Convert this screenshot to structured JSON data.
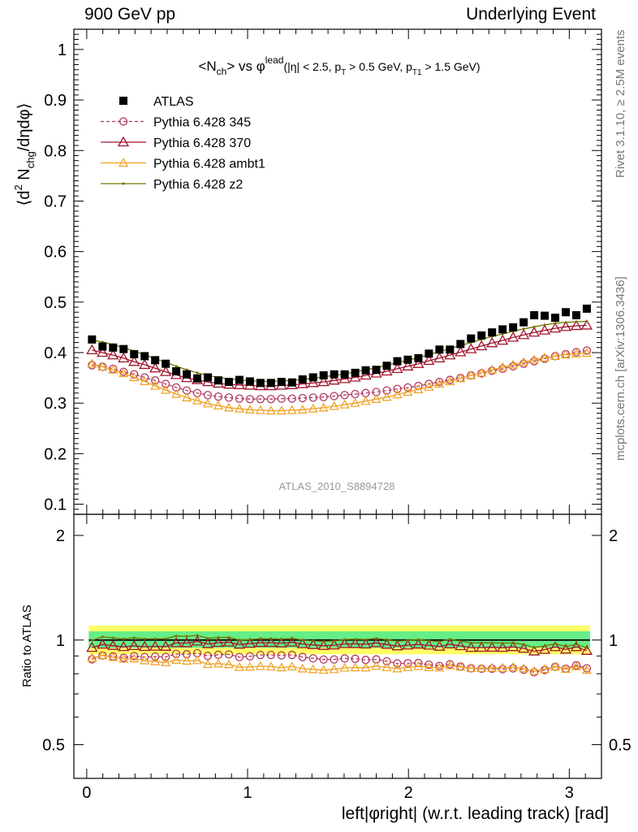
{
  "header": {
    "left_label": "900 GeV pp",
    "right_label": "Underlying Event"
  },
  "side": {
    "rivet_label": "Rivet 3.1.10, ≥ 2.5M events",
    "mcplots_label": "mcplots.cern.ch [arXiv:1306.3436]"
  },
  "colors": {
    "atlas": "#000000",
    "p345": "#b2375f",
    "p370": "#a0142d",
    "ambt1": "#f0a020",
    "z2": "#737300",
    "band_green": "#66ee88",
    "band_yellow": "#ffff66"
  },
  "chart_data": {
    "type": "scatter",
    "title": "<N_ch> vs φ^lead (|η| < 2.5, p_T > 0.5 GeV, p_T1 > 1.5 GeV)",
    "title_parts": {
      "main": "<N",
      "main_sub": "ch",
      "vs": "> vs φ",
      "sup": "lead",
      "cuts_a": "(|η| < 2.5, p",
      "cuts_a_sub": "T",
      "cuts_b": " > 0.5 GeV, p",
      "cuts_b_sub": "T1",
      "cuts_c": " > 1.5 GeV)"
    },
    "ylabel": "⟨d² N_chg/dηdφ⟩",
    "ylabel_parts": {
      "a": "⟨d",
      "a_sup": "2",
      "b": " N",
      "b_sub": "chg",
      "c": "/dηdφ⟩"
    },
    "ratio_ylabel": "Ratio to ATLAS",
    "xlabel": "left|φright| (w.r.t. leading track) [rad]",
    "analysis_label": "ATLAS_2010_S8894728",
    "xlim": [
      -0.08,
      3.2
    ],
    "ylim": [
      0.08,
      1.04
    ],
    "ratio_ylim": [
      0.4,
      2.3
    ],
    "ratio_scale": "log",
    "x_ticks": [
      "0",
      "1",
      "2",
      "3"
    ],
    "y_ticks": [
      "0.1",
      "0.2",
      "0.3",
      "0.4",
      "0.5",
      "0.6",
      "0.7",
      "0.8",
      "0.9",
      "1"
    ],
    "ratio_y_ticks": [
      "0.5",
      "1",
      "2"
    ],
    "legend_position": "top-left",
    "grid": false,
    "legend": [
      {
        "name": "ATLAS",
        "marker": "square"
      },
      {
        "name": "Pythia 6.428 345",
        "marker": "circle-open"
      },
      {
        "name": "Pythia 6.428 370",
        "marker": "triangle-open"
      },
      {
        "name": "Pythia 6.428 ambt1",
        "marker": "triangle-open-small"
      },
      {
        "name": "Pythia 6.428 z2",
        "marker": "dot"
      }
    ],
    "x": [
      0.0327,
      0.0982,
      0.1636,
      0.2291,
      0.2945,
      0.36,
      0.4254,
      0.4909,
      0.5563,
      0.6218,
      0.6872,
      0.7527,
      0.8181,
      0.8836,
      0.949,
      1.0145,
      1.0799,
      1.1454,
      1.2108,
      1.2763,
      1.3417,
      1.4072,
      1.4726,
      1.5381,
      1.6035,
      1.669,
      1.7344,
      1.7999,
      1.8653,
      1.9308,
      1.9962,
      2.0617,
      2.1271,
      2.1926,
      2.258,
      2.3235,
      2.3889,
      2.4544,
      2.5198,
      2.5853,
      2.6507,
      2.7162,
      2.7816,
      2.8471,
      2.9125,
      2.978,
      3.0434,
      3.1089
    ],
    "series": [
      {
        "name": "ATLAS",
        "values": [
          0.426,
          0.412,
          0.41,
          0.407,
          0.397,
          0.393,
          0.385,
          0.378,
          0.363,
          0.357,
          0.349,
          0.351,
          0.345,
          0.342,
          0.346,
          0.343,
          0.34,
          0.34,
          0.342,
          0.341,
          0.347,
          0.351,
          0.355,
          0.357,
          0.357,
          0.36,
          0.365,
          0.366,
          0.374,
          0.383,
          0.386,
          0.389,
          0.398,
          0.406,
          0.406,
          0.417,
          0.428,
          0.434,
          0.44,
          0.446,
          0.45,
          0.46,
          0.474,
          0.473,
          0.469,
          0.48,
          0.474,
          0.487
        ]
      },
      {
        "name": "Pythia 6.428 345",
        "values": [
          0.375,
          0.372,
          0.368,
          0.362,
          0.357,
          0.351,
          0.345,
          0.338,
          0.331,
          0.325,
          0.32,
          0.316,
          0.313,
          0.311,
          0.309,
          0.308,
          0.308,
          0.308,
          0.309,
          0.309,
          0.31,
          0.311,
          0.312,
          0.314,
          0.316,
          0.318,
          0.32,
          0.322,
          0.325,
          0.328,
          0.331,
          0.334,
          0.338,
          0.342,
          0.346,
          0.35,
          0.355,
          0.359,
          0.364,
          0.368,
          0.373,
          0.378,
          0.383,
          0.388,
          0.393,
          0.397,
          0.401,
          0.404
        ]
      },
      {
        "name": "Pythia 6.428 370",
        "values": [
          0.405,
          0.4,
          0.395,
          0.389,
          0.382,
          0.376,
          0.369,
          0.362,
          0.356,
          0.35,
          0.346,
          0.342,
          0.339,
          0.337,
          0.336,
          0.335,
          0.334,
          0.334,
          0.335,
          0.336,
          0.338,
          0.34,
          0.342,
          0.345,
          0.348,
          0.351,
          0.355,
          0.359,
          0.363,
          0.368,
          0.373,
          0.378,
          0.384,
          0.389,
          0.395,
          0.401,
          0.407,
          0.413,
          0.419,
          0.424,
          0.43,
          0.435,
          0.44,
          0.444,
          0.448,
          0.451,
          0.453,
          0.454
        ]
      },
      {
        "name": "Pythia 6.428 ambt1",
        "values": [
          0.378,
          0.372,
          0.366,
          0.359,
          0.351,
          0.343,
          0.334,
          0.326,
          0.318,
          0.311,
          0.305,
          0.299,
          0.295,
          0.291,
          0.289,
          0.287,
          0.286,
          0.285,
          0.285,
          0.286,
          0.287,
          0.289,
          0.291,
          0.294,
          0.297,
          0.3,
          0.304,
          0.308,
          0.312,
          0.317,
          0.322,
          0.327,
          0.332,
          0.338,
          0.343,
          0.349,
          0.355,
          0.36,
          0.366,
          0.371,
          0.376,
          0.381,
          0.386,
          0.39,
          0.393,
          0.396,
          0.398,
          0.399
        ]
      },
      {
        "name": "Pythia 6.428 z2",
        "values": [
          0.425,
          0.421,
          0.416,
          0.41,
          0.403,
          0.396,
          0.388,
          0.381,
          0.373,
          0.366,
          0.36,
          0.355,
          0.351,
          0.348,
          0.346,
          0.344,
          0.343,
          0.343,
          0.344,
          0.345,
          0.347,
          0.349,
          0.352,
          0.355,
          0.358,
          0.362,
          0.366,
          0.37,
          0.375,
          0.38,
          0.385,
          0.39,
          0.396,
          0.402,
          0.408,
          0.414,
          0.42,
          0.426,
          0.432,
          0.437,
          0.442,
          0.447,
          0.451,
          0.455,
          0.458,
          0.46,
          0.461,
          0.462
        ]
      }
    ]
  }
}
